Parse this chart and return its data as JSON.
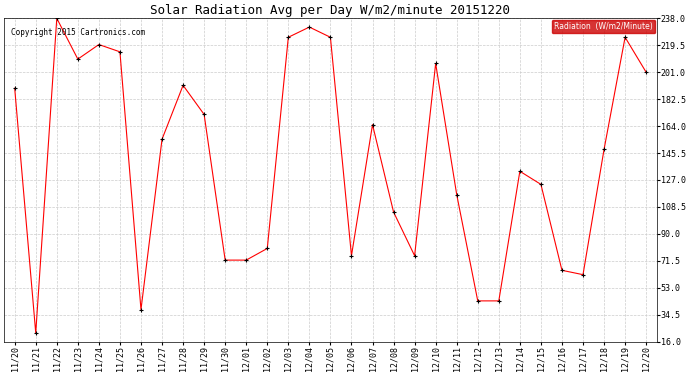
{
  "title": "Solar Radiation Avg per Day W/m2/minute 20151220",
  "copyright_text": "Copyright 2015 Cartronics.com",
  "legend_label": "Radiation  (W/m2/Minute)",
  "dates": [
    "11/20",
    "11/21",
    "11/22",
    "11/23",
    "11/24",
    "11/25",
    "11/26",
    "11/27",
    "11/28",
    "11/29",
    "11/30",
    "12/01",
    "12/02",
    "12/03",
    "12/04",
    "12/05",
    "12/06",
    "12/07",
    "12/08",
    "12/09",
    "12/10",
    "12/11",
    "12/12",
    "12/13",
    "12/14",
    "12/15",
    "12/16",
    "12/17",
    "12/18",
    "12/19",
    "12/20"
  ],
  "values": [
    190,
    22,
    238,
    210,
    220,
    215,
    38,
    155,
    192,
    172,
    72,
    72,
    80,
    225,
    232,
    225,
    75,
    165,
    105,
    75,
    207,
    117,
    44,
    44,
    133,
    124,
    65,
    62,
    148,
    225,
    201
  ],
  "line_color": "#ff0000",
  "marker": "+",
  "marker_color": "#000000",
  "marker_size": 3,
  "marker_linewidth": 0.8,
  "line_width": 0.8,
  "background_color": "#ffffff",
  "plot_bg_color": "#ffffff",
  "grid_color": "#cccccc",
  "grid_style": "--",
  "yticks": [
    16.0,
    34.5,
    53.0,
    71.5,
    90.0,
    108.5,
    127.0,
    145.5,
    164.0,
    182.5,
    201.0,
    219.5,
    238.0
  ],
  "ymin": 16.0,
  "ymax": 238.0,
  "title_fontsize": 9,
  "tick_fontsize": 6,
  "copyright_fontsize": 5.5,
  "legend_fontsize": 5.5,
  "legend_bg": "#cc0000",
  "legend_text_color": "#ffffff"
}
